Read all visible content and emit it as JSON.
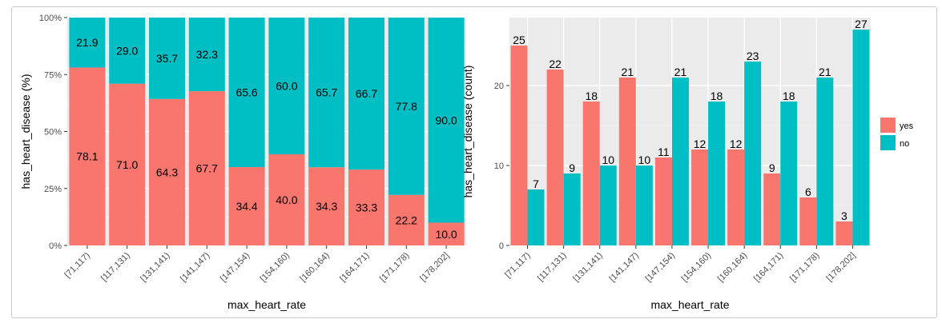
{
  "colors": {
    "panel": "#EBEBEB",
    "grid_major": "#FFFFFF",
    "grid_minor": "#F4F4F4",
    "axis_text": "#4D4D4D",
    "title_text": "#000000",
    "yes": "#F8766D",
    "no": "#00BFC4"
  },
  "chart_data": [
    {
      "type": "bar",
      "stacked": true,
      "position": "fill",
      "categories": [
        "[71,117)",
        "[117,131)",
        "[131,141)",
        "[141,147)",
        "[147,154)",
        "[154,160)",
        "[160,164)",
        "[164,171)",
        "[171,178)",
        "[178,202]"
      ],
      "series": [
        {
          "name": "yes",
          "values": [
            78.1,
            71.0,
            64.3,
            67.7,
            34.4,
            40.0,
            34.3,
            33.3,
            22.2,
            10.0
          ]
        },
        {
          "name": "no",
          "values": [
            21.9,
            29.0,
            35.7,
            32.3,
            65.6,
            60.0,
            65.7,
            66.7,
            77.8,
            90.0
          ]
        }
      ],
      "data_labels": {
        "yes": [
          "78.1",
          "71.0",
          "64.3",
          "67.7",
          "34.4",
          "40.0",
          "34.3",
          "33.3",
          "22.2",
          "10.0"
        ],
        "no": [
          "21.9",
          "29.0",
          "35.7",
          "32.3",
          "65.6",
          "60.0",
          "65.7",
          "66.7",
          "77.8",
          "90.0"
        ]
      },
      "ylim": [
        0,
        100
      ],
      "yticks": [
        0,
        25,
        50,
        75,
        100
      ],
      "ytick_labels": [
        "0%",
        "25%",
        "50%",
        "75%",
        "100%"
      ],
      "xlabel": "max_heart_rate",
      "ylabel": "has_heart_disease  (%)",
      "grid": true,
      "legend": "none"
    },
    {
      "type": "bar",
      "stacked": false,
      "position": "dodge",
      "categories": [
        "[71,117)",
        "[117,131)",
        "[131,141)",
        "[141,147)",
        "[147,154)",
        "[154,160)",
        "[160,164)",
        "[164,171)",
        "[171,178)",
        "[178,202]"
      ],
      "series": [
        {
          "name": "yes",
          "values": [
            25,
            22,
            18,
            21,
            11,
            12,
            12,
            9,
            6,
            3
          ]
        },
        {
          "name": "no",
          "values": [
            7,
            9,
            10,
            10,
            21,
            18,
            23,
            18,
            21,
            27
          ]
        }
      ],
      "data_labels": {
        "yes": [
          "25",
          "22",
          "18",
          "21",
          "11",
          "12",
          "12",
          "9",
          "6",
          "3"
        ],
        "no": [
          "7",
          "9",
          "10",
          "10",
          "21",
          "18",
          "23",
          "18",
          "21",
          "27"
        ]
      },
      "ylim": [
        0,
        28.5
      ],
      "yticks": [
        0,
        10,
        20
      ],
      "ytick_labels": [
        "0",
        "10",
        "20"
      ],
      "xlabel": "max_heart_rate",
      "ylabel": "has_heart_disease  (count)",
      "grid": true,
      "legend": "right",
      "legend_entries": [
        "yes",
        "no"
      ]
    }
  ]
}
